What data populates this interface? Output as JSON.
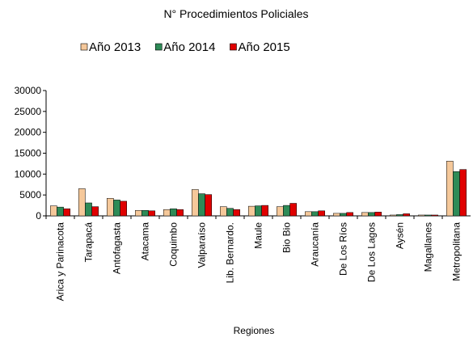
{
  "chart_data": {
    "type": "bar",
    "title": "N° Procedimientos Policiales",
    "x_label": "Regiones",
    "categories": [
      "Arica y Parinacota",
      "Tarapacá",
      "Antofagasta",
      "Atacama",
      "Coquimbo",
      "Valparaíso",
      "Lib. Bernardo.",
      "Maule",
      "Bio Bio",
      "Araucanía",
      "De Los Ríos",
      "De Los Lagos",
      "Aysén",
      "Magallanes",
      "Metropolitana"
    ],
    "series": [
      {
        "name": "Año 2013",
        "color": "#f5c89a",
        "values": [
          2400,
          6500,
          4200,
          1300,
          1500,
          6300,
          2200,
          2300,
          2200,
          1000,
          600,
          800,
          200,
          200,
          13100
        ]
      },
      {
        "name": "Año 2014",
        "color": "#2e8b57",
        "values": [
          2100,
          3100,
          3800,
          1300,
          1700,
          5300,
          1800,
          2400,
          2500,
          1000,
          600,
          800,
          300,
          200,
          10600
        ]
      },
      {
        "name": "Año 2015",
        "color": "#e00000",
        "values": [
          1700,
          2200,
          3500,
          1200,
          1500,
          5100,
          1500,
          2500,
          3000,
          1200,
          800,
          900,
          500,
          200,
          11100
        ]
      }
    ],
    "ylim": [
      0,
      30000
    ],
    "yticks": [
      0,
      5000,
      10000,
      15000,
      20000,
      25000,
      30000
    ],
    "grid": false,
    "legend": "top"
  }
}
